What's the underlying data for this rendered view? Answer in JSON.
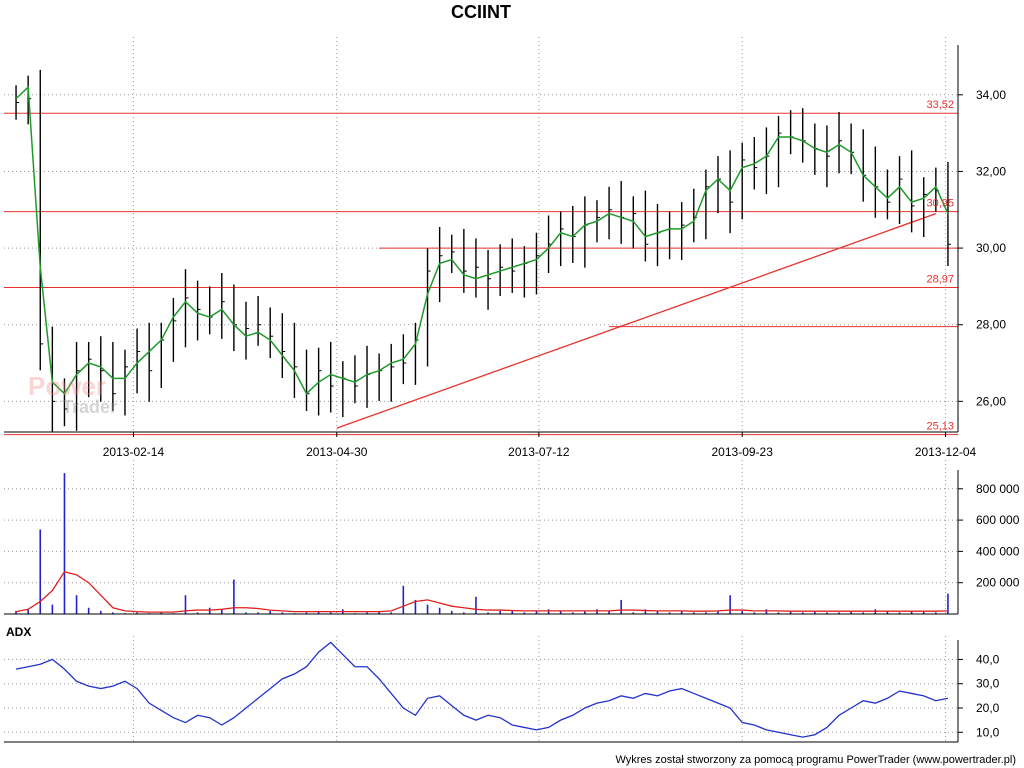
{
  "title": "CCIINT",
  "footer": "Wykres został stworzony za pomocą programu PowerTrader (www.powertrader.pl)",
  "watermark": {
    "line1": "Power",
    "line2": "Trader"
  },
  "colors": {
    "levels": "#e8322d",
    "ma": "#1f9b2a",
    "candles": "#000000",
    "volume": "#2222cc",
    "volume_ma": "#e02020",
    "adx": "#2233cc"
  },
  "chart_data": [
    {
      "type": "line",
      "panel": "price",
      "title": "CCIINT",
      "x_ticks": [
        "2013-02-14",
        "2013-04-30",
        "2013-07-12",
        "2013-09-23",
        "2013-12-04"
      ],
      "y_ticks": [
        "34,00",
        "32,00",
        "30,00",
        "28,00",
        "26,00"
      ],
      "y_tick_values": [
        34,
        32,
        30,
        28,
        26
      ],
      "ylim": [
        25.2,
        35.3
      ],
      "levels": [
        {
          "value": 33.52,
          "label": "33,52"
        },
        {
          "value": 30.95,
          "label": "30,95"
        },
        {
          "value": 28.97,
          "label": "28,97"
        },
        {
          "value": 25.13,
          "label": "25,13"
        }
      ],
      "extra_lines": [
        {
          "name": "support-30",
          "value": 30.0,
          "from_week": 30
        },
        {
          "name": "support-28",
          "value": 27.95,
          "from_week": 49
        }
      ],
      "trendline": {
        "from": {
          "week": 26.5,
          "value": 25.3
        },
        "to": {
          "week": 76,
          "value": 30.9
        }
      },
      "weeks_total": 78,
      "series_close": [
        33.8,
        33.9,
        27.5,
        26.0,
        25.8,
        26.8,
        27.1,
        26.8,
        26.2,
        26.9,
        27.3,
        26.8,
        27.6,
        28.1,
        28.7,
        28.4,
        28.2,
        28.6,
        28.0,
        27.9,
        28.0,
        27.7,
        27.3,
        26.9,
        26.2,
        26.8,
        26.4,
        26.6,
        26.4,
        26.7,
        26.8,
        26.9,
        27.0,
        27.6,
        29.4,
        29.8,
        29.9,
        29.4,
        29.5,
        29.2,
        29.5,
        29.4,
        29.6,
        29.8,
        30.1,
        30.5,
        30.3,
        30.6,
        30.8,
        31.0,
        30.8,
        30.9,
        30.1,
        30.4,
        30.5,
        30.6,
        30.8,
        31.6,
        31.8,
        31.2,
        32.3,
        32.1,
        32.4,
        33.0,
        32.9,
        32.8,
        32.6,
        32.4,
        32.8,
        32.5,
        31.9,
        31.6,
        31.2,
        31.8,
        31.1,
        31.4,
        31.5,
        30.1
      ],
      "series_ma": [
        33.9,
        34.2,
        29.5,
        26.5,
        26.2,
        26.7,
        27.0,
        26.9,
        26.6,
        26.6,
        27.0,
        27.3,
        27.6,
        28.2,
        28.6,
        28.3,
        28.2,
        28.4,
        28.0,
        27.7,
        27.8,
        27.6,
        27.2,
        26.8,
        26.2,
        26.5,
        26.7,
        26.6,
        26.5,
        26.7,
        26.8,
        27.0,
        27.1,
        27.5,
        28.8,
        29.6,
        29.7,
        29.3,
        29.2,
        29.3,
        29.4,
        29.5,
        29.6,
        29.7,
        30.0,
        30.4,
        30.3,
        30.6,
        30.7,
        30.9,
        30.8,
        30.7,
        30.3,
        30.4,
        30.5,
        30.5,
        30.7,
        31.5,
        31.8,
        31.5,
        32.1,
        32.2,
        32.4,
        32.9,
        32.9,
        32.8,
        32.6,
        32.5,
        32.7,
        32.5,
        31.9,
        31.6,
        31.3,
        31.6,
        31.2,
        31.3,
        31.6,
        30.9
      ]
    },
    {
      "type": "bar",
      "panel": "volume",
      "y_ticks": [
        "800 000",
        "600 000",
        "400 000",
        "200 000"
      ],
      "y_tick_values": [
        800000,
        600000,
        400000,
        200000
      ],
      "ylim": [
        0,
        920000
      ],
      "weeks_total": 78,
      "volume": [
        20000,
        30000,
        540000,
        60000,
        900000,
        120000,
        40000,
        20000,
        10000,
        5000,
        10000,
        5000,
        10000,
        5000,
        120000,
        10000,
        40000,
        30000,
        220000,
        10000,
        10000,
        20000,
        10000,
        5000,
        10000,
        20000,
        10000,
        30000,
        5000,
        10000,
        20000,
        10000,
        180000,
        90000,
        60000,
        40000,
        20000,
        10000,
        110000,
        10000,
        20000,
        20000,
        10000,
        20000,
        30000,
        20000,
        10000,
        20000,
        30000,
        20000,
        90000,
        10000,
        30000,
        20000,
        10000,
        20000,
        10000,
        10000,
        20000,
        120000,
        20000,
        10000,
        30000,
        10000,
        20000,
        10000,
        20000,
        10000,
        10000,
        20000,
        10000,
        30000,
        20000,
        10000,
        20000,
        20000,
        10000,
        130000
      ],
      "volume_ma": [
        15000,
        30000,
        80000,
        150000,
        270000,
        250000,
        200000,
        120000,
        40000,
        20000,
        15000,
        12000,
        12000,
        12000,
        20000,
        25000,
        25000,
        30000,
        40000,
        40000,
        35000,
        25000,
        20000,
        15000,
        15000,
        15000,
        15000,
        15000,
        15000,
        15000,
        15000,
        20000,
        50000,
        80000,
        90000,
        70000,
        50000,
        40000,
        30000,
        25000,
        25000,
        22000,
        20000,
        20000,
        20000,
        20000,
        20000,
        20000,
        20000,
        20000,
        25000,
        25000,
        22000,
        20000,
        20000,
        20000,
        18000,
        18000,
        20000,
        25000,
        25000,
        20000,
        20000,
        20000,
        18000,
        18000,
        18000,
        18000,
        18000,
        18000,
        18000,
        18000,
        18000,
        18000,
        18000,
        18000,
        18000,
        20000
      ]
    },
    {
      "type": "line",
      "panel": "adx",
      "title": "ADX",
      "y_ticks": [
        "40,0",
        "30,0",
        "20,0",
        "10,0"
      ],
      "y_tick_values": [
        40,
        30,
        20,
        10
      ],
      "ylim": [
        6,
        48
      ],
      "weeks_total": 78,
      "values": [
        36,
        37,
        38,
        40,
        36,
        31,
        29,
        28,
        29,
        31,
        28,
        22,
        19,
        16,
        14,
        17,
        16,
        13,
        16,
        20,
        24,
        28,
        32,
        34,
        37,
        43,
        47,
        42,
        37,
        37,
        32,
        26,
        20,
        17,
        24,
        25,
        21,
        17,
        15,
        17,
        16,
        13,
        12,
        11,
        12,
        15,
        17,
        20,
        22,
        23,
        25,
        24,
        26,
        25,
        27,
        28,
        26,
        24,
        22,
        20,
        14,
        13,
        11,
        10,
        9,
        8,
        9,
        12,
        17,
        20,
        23,
        22,
        24,
        27,
        26,
        25,
        23,
        24
      ]
    }
  ]
}
